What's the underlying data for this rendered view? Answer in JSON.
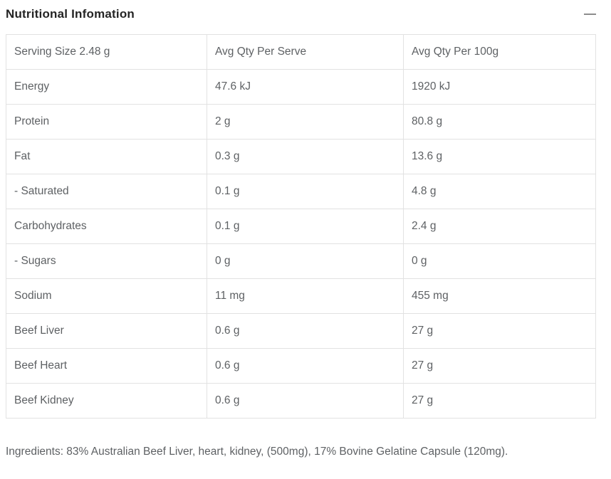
{
  "accordion": {
    "title": "Nutritional Infomation",
    "collapse_icon": "minus-icon",
    "state": "expanded"
  },
  "table": {
    "headers": [
      "Serving Size 2.48 g",
      "Avg Qty Per Serve",
      "Avg Qty Per 100g"
    ],
    "rows": [
      [
        "Energy",
        "47.6 kJ",
        "1920 kJ"
      ],
      [
        "Protein",
        "2 g",
        "80.8 g"
      ],
      [
        "Fat",
        "0.3 g",
        "13.6 g"
      ],
      [
        "- Saturated",
        "0.1 g",
        "4.8 g"
      ],
      [
        "Carbohydrates",
        "0.1 g",
        "2.4 g"
      ],
      [
        "- Sugars",
        "0 g",
        "0 g"
      ],
      [
        "Sodium",
        "11 mg",
        "455 mg"
      ],
      [
        "Beef Liver",
        "0.6 g",
        "27 g"
      ],
      [
        "Beef Heart",
        "0.6 g",
        "27 g"
      ],
      [
        "Beef Kidney",
        "0.6 g",
        "27 g"
      ]
    ]
  },
  "ingredients": {
    "text": "Ingredients: 83% Australian Beef Liver, heart, kidney, (500mg), 17% Bovine Gelatine Capsule (120mg)."
  },
  "colors": {
    "title_text": "#242424",
    "body_text": "#5e6164",
    "border": "#e2e2e2",
    "icon": "#8c8c8c",
    "background": "#ffffff"
  }
}
